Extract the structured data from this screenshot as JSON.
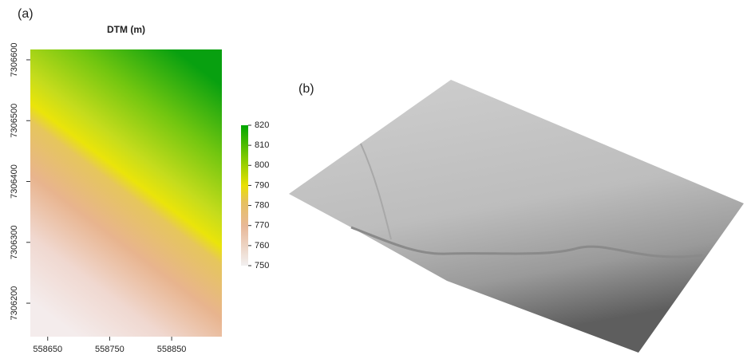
{
  "chart_data": [
    {
      "type": "heatmap",
      "label": "(a)",
      "title": "DTM (m)",
      "xlim": [
        558622,
        558931
      ],
      "xticks": [
        558650,
        558750,
        558850
      ],
      "ylim": [
        7306145,
        7306617
      ],
      "yticks": [
        7306200,
        7306300,
        7306400,
        7306500,
        7306600
      ],
      "clim": [
        750,
        820
      ],
      "cticks": [
        750,
        760,
        770,
        780,
        790,
        800,
        810,
        820
      ]
    },
    {
      "type": "image",
      "label": "(b)"
    }
  ]
}
